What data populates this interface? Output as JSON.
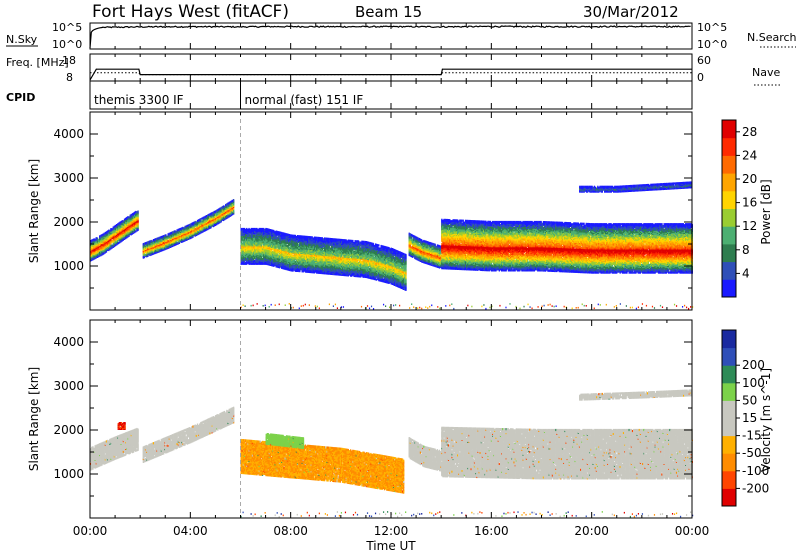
{
  "header": {
    "station": "Fort Hays West (fitACF)",
    "beam": "Beam 15",
    "date": "30/Mar/2012"
  },
  "colors": {
    "power_scale": [
      "#1a1aff",
      "#2f4fb8",
      "#2e7d4f",
      "#4caf72",
      "#9acd32",
      "#ffd400",
      "#ffa500",
      "#ff6a00",
      "#ff2a00",
      "#e00000"
    ],
    "velocity_scale": [
      "#e00000",
      "#ff4500",
      "#ff8c00",
      "#ffb000",
      "#c8c8c0",
      "#c8c8c0",
      "#7cd24a",
      "#2e8b57",
      "#2f4fb8",
      "#1a2aa0"
    ]
  },
  "chart_data": [
    {
      "type": "line",
      "name": "sky-noise-panel",
      "left_label": "N.Sky",
      "right_label": "N.Search",
      "y_ticks_left": [
        "10^5",
        "10^0"
      ],
      "y_ticks_right": [
        "10^5",
        "10^0"
      ],
      "x": [
        0,
        0.5,
        2,
        4,
        6,
        8,
        10,
        12,
        14,
        16,
        18,
        20,
        22,
        24
      ],
      "series": [
        {
          "values": [
            1,
            20000,
            25000,
            28000,
            26000,
            30000,
            27000,
            29000,
            26000,
            31000,
            28000,
            30000,
            29000,
            30000
          ]
        }
      ]
    },
    {
      "type": "line",
      "name": "frequency-panel",
      "left_label": "Freq. [MHz]",
      "right_label": "Nave",
      "y_ticks_left": [
        "18",
        "8"
      ],
      "y_ticks_right": [
        "60",
        "0"
      ],
      "x": [
        0,
        0.25,
        1.95,
        2.0,
        14.0,
        14.05,
        24
      ],
      "series": [
        {
          "values": [
            8,
            14,
            14,
            11,
            11,
            14,
            14
          ]
        },
        {
          "values": [
            12,
            12,
            12,
            11,
            11,
            12,
            12
          ]
        }
      ]
    },
    {
      "type": "table",
      "name": "cpid-panel",
      "label": "CPID",
      "rows": [
        {
          "start": 0,
          "end": 6,
          "text": "themis 3300 IF"
        },
        {
          "start": 6,
          "end": 24,
          "text": "normal (fast) 151 IF"
        }
      ]
    },
    {
      "type": "heatmap",
      "name": "power-panel",
      "ylabel": "Slant Range [km]",
      "ylim": [
        0,
        4500
      ],
      "yticks": [
        1000,
        2000,
        3000,
        4000
      ],
      "colorbar_label": "Power [dB]",
      "colorbar_ticks": [
        4,
        8,
        12,
        16,
        20,
        24,
        28
      ],
      "colorbar_range": [
        0,
        30
      ],
      "bands": [
        {
          "x": [
            0.0,
            0.5,
            1.0,
            1.5,
            1.9
          ],
          "center": [
            1350,
            1500,
            1700,
            1900,
            2050
          ],
          "width": 450,
          "peak": 26
        },
        {
          "x": [
            2.1,
            3.0,
            4.0,
            5.0,
            5.7
          ],
          "center": [
            1350,
            1550,
            1800,
            2100,
            2350
          ],
          "width": 320,
          "peak": 22
        },
        {
          "x": [
            6.0,
            7.0,
            8.0,
            9.0,
            10.0,
            11.0,
            12.0,
            12.6
          ],
          "center": [
            1450,
            1450,
            1300,
            1250,
            1200,
            1150,
            1000,
            850
          ],
          "width": 800,
          "peak": 16
        },
        {
          "x": [
            12.7,
            13.2,
            14.0
          ],
          "center": [
            1500,
            1350,
            1200
          ],
          "width": 500,
          "peak": 22
        },
        {
          "x": [
            14.0,
            16.0,
            18.0,
            20.0,
            22.0,
            24.0
          ],
          "center": [
            1500,
            1450,
            1450,
            1400,
            1400,
            1400
          ],
          "width": 1100,
          "peak": 28
        },
        {
          "x": [
            19.5,
            21.0,
            22.5,
            24.0
          ],
          "center": [
            2750,
            2750,
            2800,
            2850
          ],
          "width": 120,
          "peak": 6
        }
      ]
    },
    {
      "type": "heatmap",
      "name": "velocity-panel",
      "ylabel": "Slant Range [km]",
      "xlabel": "Time UT",
      "ylim": [
        0,
        4500
      ],
      "yticks": [
        1000,
        2000,
        3000,
        4000
      ],
      "xticks": [
        "00:00",
        "04:00",
        "08:00",
        "12:00",
        "16:00",
        "20:00",
        "00:00"
      ],
      "colorbar_label": "Velocity [m s^-1]",
      "colorbar_ticks": [
        "-200",
        "-100",
        "-50",
        "-15",
        "15",
        "50",
        "100",
        "200"
      ],
      "bands": [
        {
          "x": [
            0.0,
            1.0,
            1.9
          ],
          "center": [
            1350,
            1600,
            1800
          ],
          "width": 500,
          "velocity": 0
        },
        {
          "x": [
            1.1,
            1.4
          ],
          "center": [
            2100,
            2100
          ],
          "width": 150,
          "velocity": -200
        },
        {
          "x": [
            2.1,
            4.0,
            5.7
          ],
          "center": [
            1450,
            1900,
            2350
          ],
          "width": 350,
          "velocity": 0
        },
        {
          "x": [
            6.0,
            8.0,
            10.0,
            12.5
          ],
          "center": [
            1400,
            1300,
            1200,
            950
          ],
          "width": 750,
          "velocity": -50
        },
        {
          "x": [
            7.0,
            8.5
          ],
          "center": [
            1800,
            1700
          ],
          "width": 220,
          "velocity": 60
        },
        {
          "x": [
            12.7,
            13.3,
            14.0
          ],
          "center": [
            1600,
            1400,
            1300
          ],
          "width": 450,
          "velocity": 30
        },
        {
          "x": [
            14.0,
            18.0,
            22.0,
            24.0
          ],
          "center": [
            1500,
            1450,
            1450,
            1450
          ],
          "width": 1100,
          "velocity": 0
        },
        {
          "x": [
            19.5,
            22.0,
            24.0
          ],
          "center": [
            2750,
            2800,
            2850
          ],
          "width": 120,
          "velocity": 0
        }
      ]
    }
  ]
}
